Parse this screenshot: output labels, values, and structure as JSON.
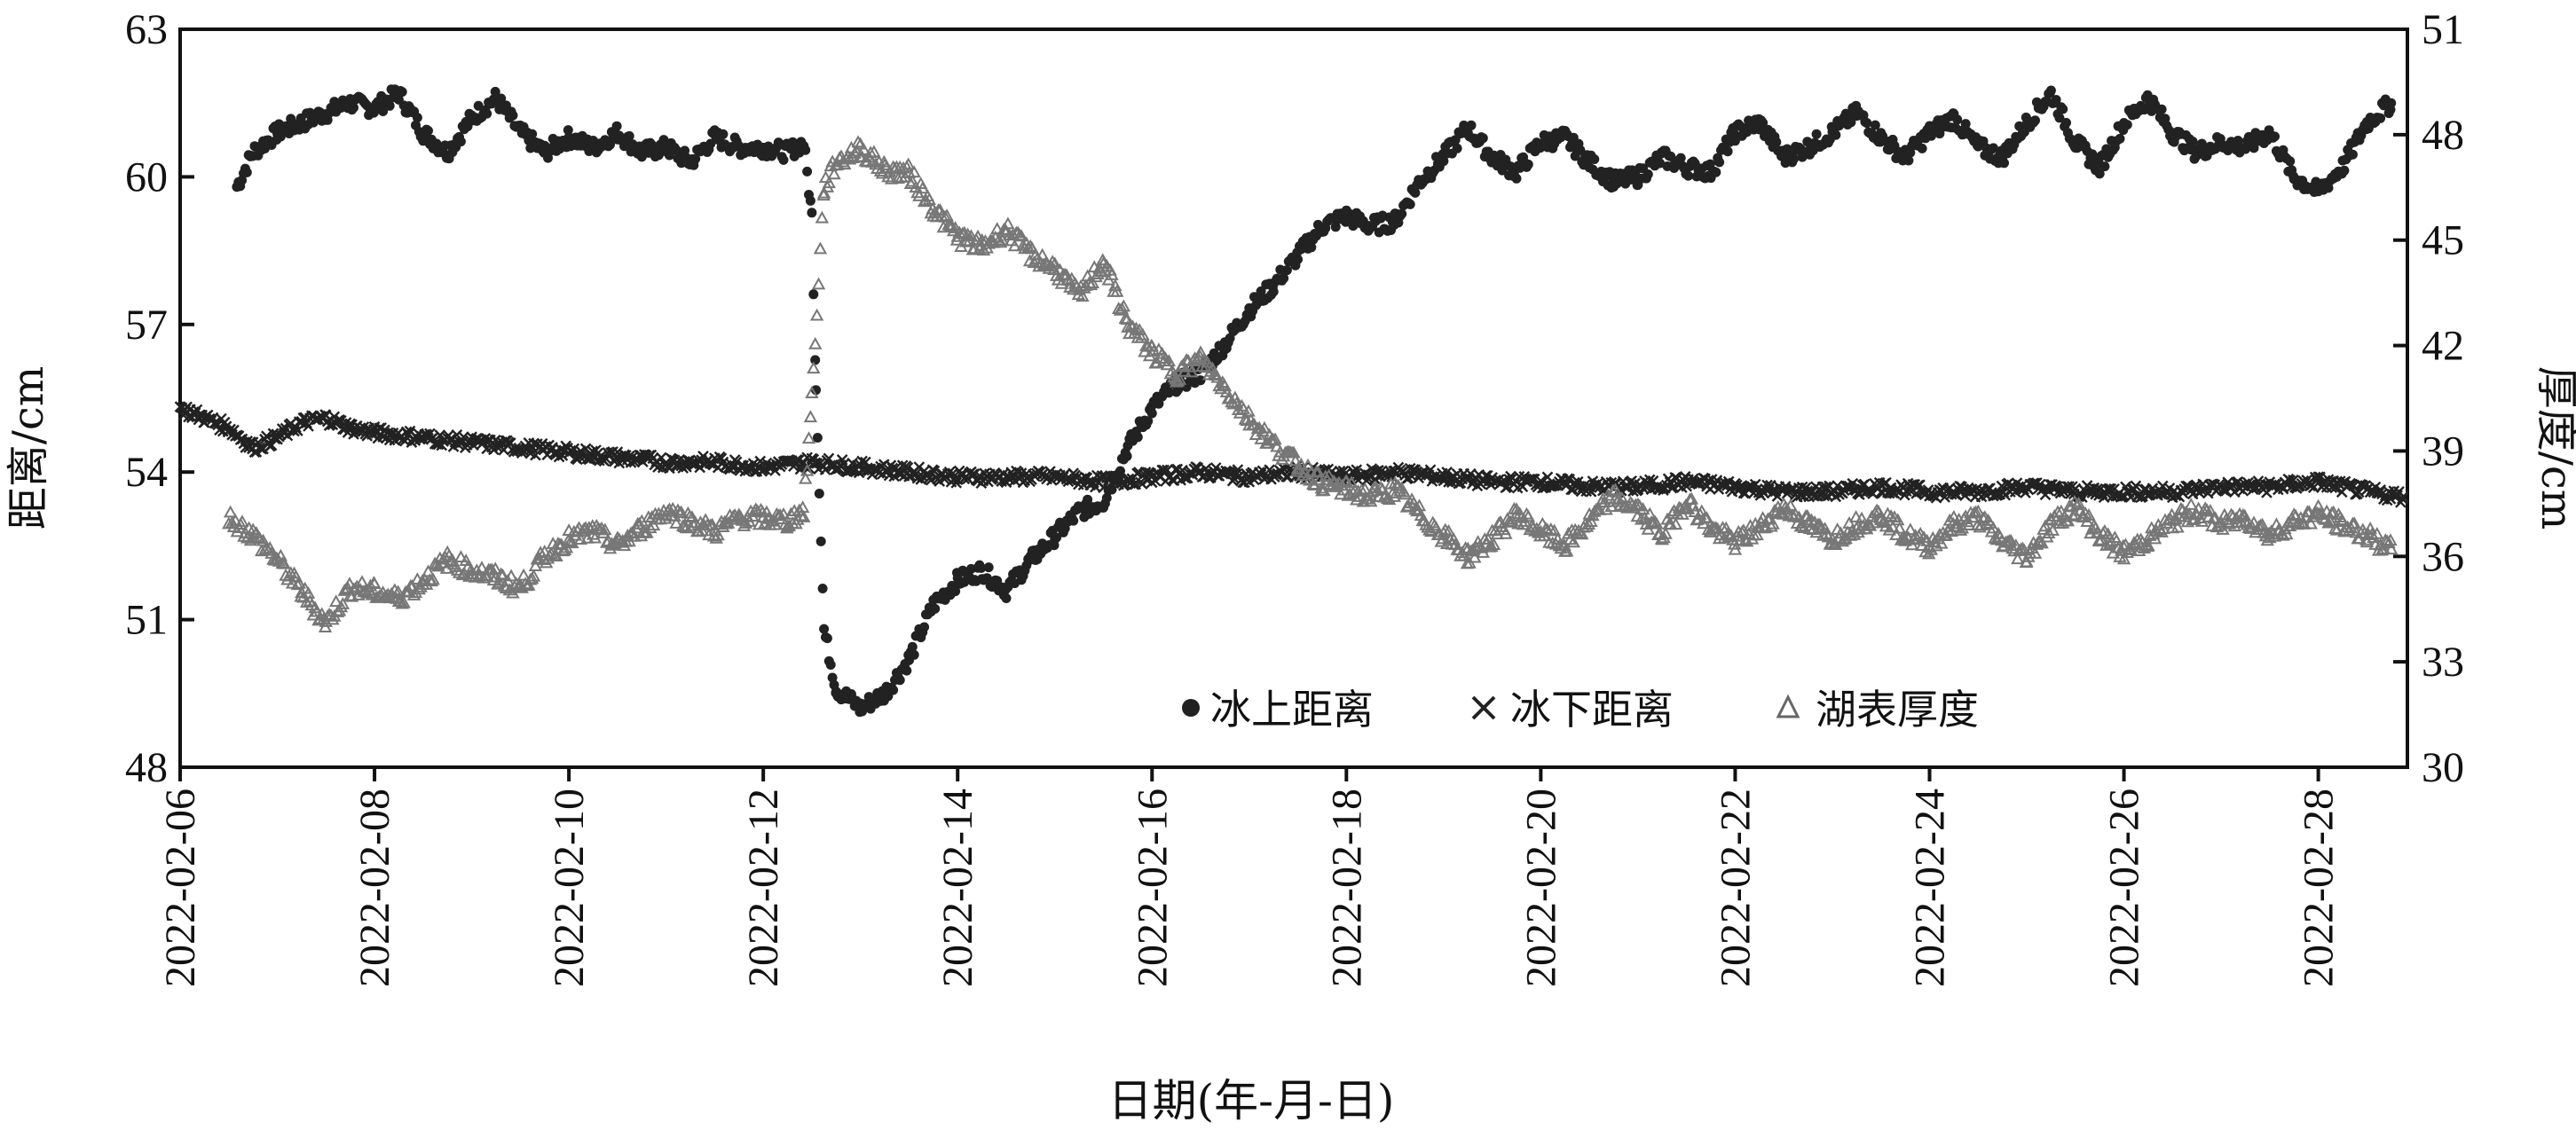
{
  "chart_data": {
    "type": "scatter",
    "xlabel": "日期(年-月-日)",
    "ylabel_left": "距离/cm",
    "ylabel_right": "厚度/cm",
    "x_ticks": [
      "2022-02-06",
      "2022-02-08",
      "2022-02-10",
      "2022-02-12",
      "2022-02-14",
      "2022-02-16",
      "2022-02-18",
      "2022-02-20",
      "2022-02-22",
      "2022-02-24",
      "2022-02-26",
      "2022-02-28"
    ],
    "xlim": [
      "2022-02-06T00:00",
      "2022-02-28T22:00"
    ],
    "ylim_left": [
      48,
      63
    ],
    "yticks_left": [
      48,
      51,
      54,
      57,
      60,
      63
    ],
    "ylim_right": [
      30,
      51
    ],
    "yticks_right": [
      30,
      33,
      36,
      39,
      42,
      45,
      48,
      51
    ],
    "grid": false,
    "legend_position": "bottom-center, inside plot",
    "series": [
      {
        "name": "冰上距离",
        "marker": "filled-circle",
        "color": "#222222",
        "axis": "left",
        "points": [
          [
            "2022-02-06T14:00",
            59.8
          ],
          [
            "2022-02-06T18:00",
            60.5
          ],
          [
            "2022-02-07T00:00",
            60.9
          ],
          [
            "2022-02-07T06:00",
            61.1
          ],
          [
            "2022-02-07T12:00",
            61.3
          ],
          [
            "2022-02-07T18:00",
            61.5
          ],
          [
            "2022-02-08T00:00",
            61.4
          ],
          [
            "2022-02-08T06:00",
            61.7
          ],
          [
            "2022-02-08T12:00",
            60.9
          ],
          [
            "2022-02-08T18:00",
            60.5
          ],
          [
            "2022-02-09T00:00",
            61.2
          ],
          [
            "2022-02-09T06:00",
            61.6
          ],
          [
            "2022-02-09T12:00",
            60.9
          ],
          [
            "2022-02-09T18:00",
            60.5
          ],
          [
            "2022-02-10T00:00",
            60.8
          ],
          [
            "2022-02-10T06:00",
            60.6
          ],
          [
            "2022-02-10T12:00",
            60.9
          ],
          [
            "2022-02-10T18:00",
            60.5
          ],
          [
            "2022-02-11T00:00",
            60.6
          ],
          [
            "2022-02-11T06:00",
            60.3
          ],
          [
            "2022-02-11T12:00",
            60.8
          ],
          [
            "2022-02-11T18:00",
            60.6
          ],
          [
            "2022-02-12T00:00",
            60.6
          ],
          [
            "2022-02-12T06:00",
            60.5
          ],
          [
            "2022-02-12T10:00",
            60.7
          ],
          [
            "2022-02-12T12:00",
            59.2
          ],
          [
            "2022-02-12T13:00",
            55.8
          ],
          [
            "2022-02-12T15:00",
            50.8
          ],
          [
            "2022-02-12T18:00",
            49.6
          ],
          [
            "2022-02-13T00:00",
            49.2
          ],
          [
            "2022-02-13T06:00",
            49.5
          ],
          [
            "2022-02-13T12:00",
            50.2
          ],
          [
            "2022-02-13T18:00",
            51.3
          ],
          [
            "2022-02-14T00:00",
            51.8
          ],
          [
            "2022-02-14T06:00",
            52.0
          ],
          [
            "2022-02-14T12:00",
            51.6
          ],
          [
            "2022-02-14T18:00",
            52.2
          ],
          [
            "2022-02-15T00:00",
            52.7
          ],
          [
            "2022-02-15T06:00",
            53.2
          ],
          [
            "2022-02-15T12:00",
            53.4
          ],
          [
            "2022-02-15T18:00",
            54.5
          ],
          [
            "2022-02-16T00:00",
            55.3
          ],
          [
            "2022-02-16T06:00",
            55.8
          ],
          [
            "2022-02-16T12:00",
            56.0
          ],
          [
            "2022-02-16T18:00",
            56.6
          ],
          [
            "2022-02-17T00:00",
            57.3
          ],
          [
            "2022-02-17T06:00",
            57.8
          ],
          [
            "2022-02-17T12:00",
            58.4
          ],
          [
            "2022-02-17T18:00",
            59.0
          ],
          [
            "2022-02-18T00:00",
            59.2
          ],
          [
            "2022-02-18T06:00",
            59.0
          ],
          [
            "2022-02-18T12:00",
            59.1
          ],
          [
            "2022-02-18T18:00",
            59.9
          ],
          [
            "2022-02-19T00:00",
            60.4
          ],
          [
            "2022-02-19T06:00",
            61.0
          ],
          [
            "2022-02-19T12:00",
            60.4
          ],
          [
            "2022-02-19T18:00",
            60.1
          ],
          [
            "2022-02-20T00:00",
            60.7
          ],
          [
            "2022-02-20T06:00",
            60.8
          ],
          [
            "2022-02-20T12:00",
            60.3
          ],
          [
            "2022-02-20T18:00",
            59.9
          ],
          [
            "2022-02-21T00:00",
            60.0
          ],
          [
            "2022-02-21T06:00",
            60.4
          ],
          [
            "2022-02-21T12:00",
            60.2
          ],
          [
            "2022-02-21T18:00",
            60.1
          ],
          [
            "2022-02-22T00:00",
            60.9
          ],
          [
            "2022-02-22T06:00",
            61.1
          ],
          [
            "2022-02-22T12:00",
            60.4
          ],
          [
            "2022-02-22T18:00",
            60.6
          ],
          [
            "2022-02-23T00:00",
            60.9
          ],
          [
            "2022-02-23T06:00",
            61.3
          ],
          [
            "2022-02-23T12:00",
            60.8
          ],
          [
            "2022-02-23T18:00",
            60.4
          ],
          [
            "2022-02-24T00:00",
            60.9
          ],
          [
            "2022-02-24T06:00",
            61.2
          ],
          [
            "2022-02-24T12:00",
            60.6
          ],
          [
            "2022-02-24T18:00",
            60.4
          ],
          [
            "2022-02-25T00:00",
            61.1
          ],
          [
            "2022-02-25T06:00",
            61.7
          ],
          [
            "2022-02-25T12:00",
            60.7
          ],
          [
            "2022-02-25T18:00",
            60.2
          ],
          [
            "2022-02-26T00:00",
            61.1
          ],
          [
            "2022-02-26T06:00",
            61.6
          ],
          [
            "2022-02-26T12:00",
            60.9
          ],
          [
            "2022-02-26T18:00",
            60.5
          ],
          [
            "2022-02-27T00:00",
            60.7
          ],
          [
            "2022-02-27T06:00",
            60.6
          ],
          [
            "2022-02-27T12:00",
            60.9
          ],
          [
            "2022-02-27T18:00",
            60.0
          ],
          [
            "2022-02-28T00:00",
            59.7
          ],
          [
            "2022-02-28T06:00",
            60.2
          ],
          [
            "2022-02-28T12:00",
            61.1
          ],
          [
            "2022-02-28T18:00",
            61.5
          ]
        ]
      },
      {
        "name": "冰下距离",
        "marker": "x",
        "color": "#222222",
        "axis": "left",
        "points": [
          [
            "2022-02-06T00:00",
            55.3
          ],
          [
            "2022-02-06T06:00",
            55.1
          ],
          [
            "2022-02-06T12:00",
            54.9
          ],
          [
            "2022-02-06T18:00",
            54.5
          ],
          [
            "2022-02-07T00:00",
            54.7
          ],
          [
            "2022-02-07T06:00",
            55.0
          ],
          [
            "2022-02-07T12:00",
            55.1
          ],
          [
            "2022-02-07T18:00",
            54.9
          ],
          [
            "2022-02-08T00:00",
            54.8
          ],
          [
            "2022-02-08T12:00",
            54.7
          ],
          [
            "2022-02-09T00:00",
            54.6
          ],
          [
            "2022-02-09T12:00",
            54.5
          ],
          [
            "2022-02-10T00:00",
            54.4
          ],
          [
            "2022-02-10T12:00",
            54.3
          ],
          [
            "2022-02-11T00:00",
            54.2
          ],
          [
            "2022-02-11T12:00",
            54.2
          ],
          [
            "2022-02-12T00:00",
            54.1
          ],
          [
            "2022-02-12T12:00",
            54.2
          ],
          [
            "2022-02-13T00:00",
            54.1
          ],
          [
            "2022-02-13T12:00",
            54.0
          ],
          [
            "2022-02-14T00:00",
            53.9
          ],
          [
            "2022-02-14T12:00",
            53.9
          ],
          [
            "2022-02-15T00:00",
            53.9
          ],
          [
            "2022-02-15T12:00",
            53.8
          ],
          [
            "2022-02-16T00:00",
            53.9
          ],
          [
            "2022-02-16T12:00",
            54.0
          ],
          [
            "2022-02-17T00:00",
            53.9
          ],
          [
            "2022-02-17T12:00",
            54.0
          ],
          [
            "2022-02-18T00:00",
            53.9
          ],
          [
            "2022-02-18T12:00",
            54.0
          ],
          [
            "2022-02-19T00:00",
            53.9
          ],
          [
            "2022-02-19T12:00",
            53.8
          ],
          [
            "2022-02-20T00:00",
            53.8
          ],
          [
            "2022-02-20T12:00",
            53.7
          ],
          [
            "2022-02-21T00:00",
            53.7
          ],
          [
            "2022-02-21T12:00",
            53.8
          ],
          [
            "2022-02-22T00:00",
            53.7
          ],
          [
            "2022-02-22T12:00",
            53.6
          ],
          [
            "2022-02-23T00:00",
            53.6
          ],
          [
            "2022-02-23T12:00",
            53.7
          ],
          [
            "2022-02-24T00:00",
            53.6
          ],
          [
            "2022-02-24T12:00",
            53.6
          ],
          [
            "2022-02-25T00:00",
            53.7
          ],
          [
            "2022-02-25T12:00",
            53.6
          ],
          [
            "2022-02-26T00:00",
            53.6
          ],
          [
            "2022-02-26T12:00",
            53.6
          ],
          [
            "2022-02-27T00:00",
            53.7
          ],
          [
            "2022-02-27T12:00",
            53.7
          ],
          [
            "2022-02-28T00:00",
            53.8
          ],
          [
            "2022-02-28T12:00",
            53.6
          ],
          [
            "2022-02-28T21:00",
            53.5
          ]
        ]
      },
      {
        "name": "湖表厚度",
        "marker": "open-triangle",
        "color": "#777777",
        "axis": "right",
        "points": [
          [
            "2022-02-06T12:00",
            37.1
          ],
          [
            "2022-02-06T18:00",
            36.6
          ],
          [
            "2022-02-07T00:00",
            35.9
          ],
          [
            "2022-02-07T06:00",
            35.0
          ],
          [
            "2022-02-07T12:00",
            34.1
          ],
          [
            "2022-02-07T18:00",
            35.1
          ],
          [
            "2022-02-08T00:00",
            35.0
          ],
          [
            "2022-02-08T06:00",
            34.8
          ],
          [
            "2022-02-08T12:00",
            35.3
          ],
          [
            "2022-02-08T18:00",
            35.9
          ],
          [
            "2022-02-09T00:00",
            35.6
          ],
          [
            "2022-02-09T06:00",
            35.4
          ],
          [
            "2022-02-09T12:00",
            35.1
          ],
          [
            "2022-02-09T18:00",
            36.0
          ],
          [
            "2022-02-10T00:00",
            36.5
          ],
          [
            "2022-02-10T06:00",
            36.7
          ],
          [
            "2022-02-10T12:00",
            36.3
          ],
          [
            "2022-02-10T18:00",
            36.8
          ],
          [
            "2022-02-11T00:00",
            37.3
          ],
          [
            "2022-02-11T06:00",
            37.0
          ],
          [
            "2022-02-11T12:00",
            36.7
          ],
          [
            "2022-02-11T18:00",
            37.1
          ],
          [
            "2022-02-12T00:00",
            37.1
          ],
          [
            "2022-02-12T06:00",
            37.0
          ],
          [
            "2022-02-12T10:00",
            37.3
          ],
          [
            "2022-02-12T12:00",
            40.5
          ],
          [
            "2022-02-12T15:00",
            46.5
          ],
          [
            "2022-02-12T18:00",
            47.2
          ],
          [
            "2022-02-13T00:00",
            47.6
          ],
          [
            "2022-02-13T06:00",
            47.0
          ],
          [
            "2022-02-13T12:00",
            46.9
          ],
          [
            "2022-02-13T18:00",
            45.9
          ],
          [
            "2022-02-14T00:00",
            45.1
          ],
          [
            "2022-02-14T06:00",
            44.8
          ],
          [
            "2022-02-14T12:00",
            45.3
          ],
          [
            "2022-02-14T18:00",
            44.6
          ],
          [
            "2022-02-15T00:00",
            44.2
          ],
          [
            "2022-02-15T06:00",
            43.4
          ],
          [
            "2022-02-15T12:00",
            44.4
          ],
          [
            "2022-02-15T18:00",
            42.6
          ],
          [
            "2022-02-16T00:00",
            41.8
          ],
          [
            "2022-02-16T06:00",
            41.2
          ],
          [
            "2022-02-16T12:00",
            41.6
          ],
          [
            "2022-02-16T18:00",
            40.8
          ],
          [
            "2022-02-17T00:00",
            39.9
          ],
          [
            "2022-02-17T06:00",
            39.2
          ],
          [
            "2022-02-17T12:00",
            38.6
          ],
          [
            "2022-02-17T18:00",
            38.1
          ],
          [
            "2022-02-18T00:00",
            37.9
          ],
          [
            "2022-02-18T06:00",
            37.7
          ],
          [
            "2022-02-18T12:00",
            37.9
          ],
          [
            "2022-02-18T18:00",
            37.2
          ],
          [
            "2022-02-19T00:00",
            36.6
          ],
          [
            "2022-02-19T06:00",
            36.0
          ],
          [
            "2022-02-19T12:00",
            36.5
          ],
          [
            "2022-02-19T18:00",
            37.2
          ],
          [
            "2022-02-20T00:00",
            36.7
          ],
          [
            "2022-02-20T06:00",
            36.3
          ],
          [
            "2022-02-20T12:00",
            37.0
          ],
          [
            "2022-02-20T18:00",
            37.7
          ],
          [
            "2022-02-21T00:00",
            37.3
          ],
          [
            "2022-02-21T06:00",
            36.6
          ],
          [
            "2022-02-21T12:00",
            37.6
          ],
          [
            "2022-02-21T18:00",
            36.8
          ],
          [
            "2022-02-22T00:00",
            36.4
          ],
          [
            "2022-02-22T06:00",
            36.8
          ],
          [
            "2022-02-22T12:00",
            37.4
          ],
          [
            "2022-02-22T18:00",
            36.9
          ],
          [
            "2022-02-23T00:00",
            36.5
          ],
          [
            "2022-02-23T06:00",
            36.9
          ],
          [
            "2022-02-23T12:00",
            37.2
          ],
          [
            "2022-02-23T18:00",
            36.6
          ],
          [
            "2022-02-24T00:00",
            36.3
          ],
          [
            "2022-02-24T06:00",
            36.9
          ],
          [
            "2022-02-24T12:00",
            37.1
          ],
          [
            "2022-02-24T18:00",
            36.4
          ],
          [
            "2022-02-25T00:00",
            36.0
          ],
          [
            "2022-02-25T06:00",
            36.9
          ],
          [
            "2022-02-25T12:00",
            37.4
          ],
          [
            "2022-02-25T18:00",
            36.6
          ],
          [
            "2022-02-26T00:00",
            36.1
          ],
          [
            "2022-02-26T06:00",
            36.5
          ],
          [
            "2022-02-26T12:00",
            37.0
          ],
          [
            "2022-02-26T18:00",
            37.3
          ],
          [
            "2022-02-27T00:00",
            36.9
          ],
          [
            "2022-02-27T06:00",
            37.1
          ],
          [
            "2022-02-27T12:00",
            36.6
          ],
          [
            "2022-02-27T18:00",
            37.0
          ],
          [
            "2022-02-28T00:00",
            37.2
          ],
          [
            "2022-02-28T06:00",
            36.9
          ],
          [
            "2022-02-28T12:00",
            36.6
          ],
          [
            "2022-02-28T18:00",
            36.2
          ]
        ]
      }
    ]
  }
}
